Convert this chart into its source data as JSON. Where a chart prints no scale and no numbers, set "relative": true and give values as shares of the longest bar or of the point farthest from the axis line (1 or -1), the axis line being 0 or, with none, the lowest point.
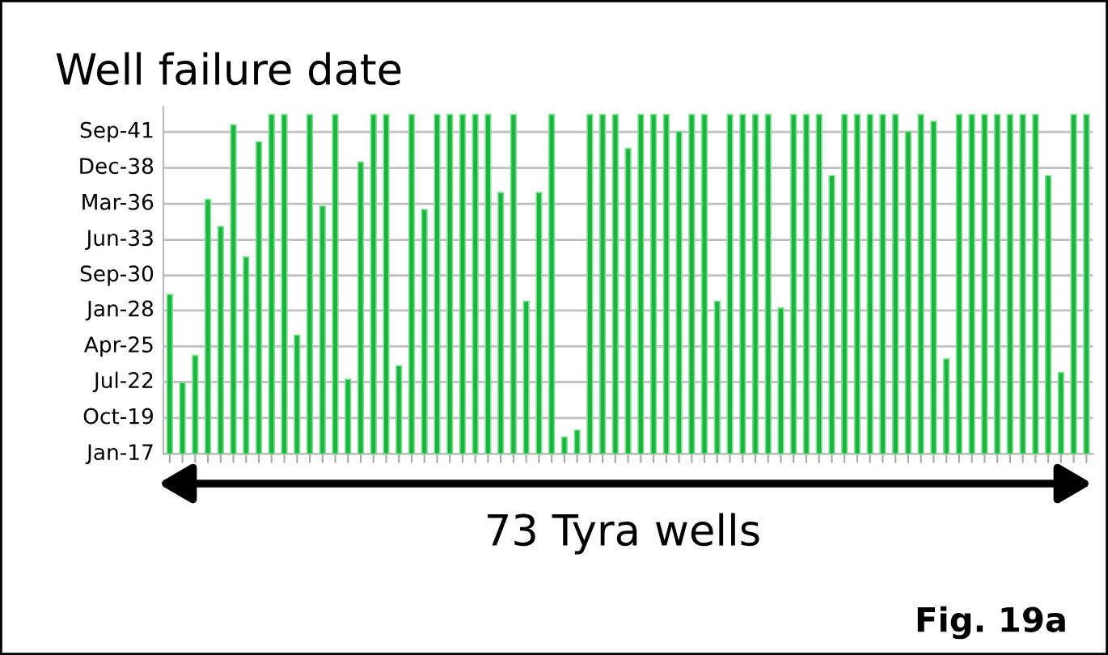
{
  "chart_data": {
    "type": "bar",
    "title": "Well failure date",
    "relative": true,
    "categories": [
      null,
      null,
      null,
      null,
      null,
      null,
      null,
      null,
      null,
      null,
      null,
      null,
      null,
      null,
      null,
      null,
      null,
      null,
      null,
      null,
      null,
      null,
      null,
      null,
      null,
      null,
      null,
      null,
      null,
      null,
      null,
      null,
      null,
      null,
      null,
      null,
      null,
      null,
      null,
      null,
      null,
      null,
      null,
      null,
      null,
      null,
      null,
      null,
      null,
      null,
      null,
      null,
      null,
      null,
      null,
      null,
      null,
      null,
      null,
      null,
      null,
      null,
      null,
      null,
      null,
      null,
      null,
      null,
      null,
      null,
      null,
      null,
      null
    ],
    "values": [
      0.47,
      0.21,
      0.29,
      0.75,
      0.67,
      0.97,
      0.58,
      0.92,
      1,
      1,
      0.35,
      1,
      0.73,
      1,
      0.22,
      0.86,
      1,
      1,
      0.26,
      1,
      0.72,
      1,
      1,
      1,
      1,
      1,
      0.77,
      1,
      0.45,
      0.77,
      1,
      0.05,
      0.07,
      1,
      1,
      1,
      0.9,
      1,
      1,
      1,
      0.95,
      1,
      1,
      0.45,
      1,
      1,
      1,
      1,
      0.43,
      1,
      1,
      1,
      0.82,
      1,
      1,
      1,
      1,
      1,
      0.95,
      1,
      0.98,
      0.28,
      1,
      1,
      1,
      1,
      1,
      1,
      1,
      0.82,
      0.24,
      1,
      1
    ],
    "color": "#1fb142",
    "ref_lines": [
      {
        "axis": "y",
        "value": 0,
        "label": "Jan-17",
        "color": "#c0c0c0"
      },
      {
        "axis": "y",
        "value": 0.106,
        "label": "Oct-19",
        "color": "#c0c0c0"
      },
      {
        "axis": "y",
        "value": 0.212,
        "label": "Jul-22",
        "color": "#c0c0c0"
      },
      {
        "axis": "y",
        "value": 0.317,
        "label": "Apr-25",
        "color": "#c0c0c0"
      },
      {
        "axis": "y",
        "value": 0.423,
        "label": "Jan-28",
        "color": "#c0c0c0"
      },
      {
        "axis": "y",
        "value": 0.526,
        "label": "Sep-30",
        "color": "#c0c0c0"
      },
      {
        "axis": "y",
        "value": 0.631,
        "label": "Jun-33",
        "color": "#c0c0c0"
      },
      {
        "axis": "y",
        "value": 0.737,
        "label": "Mar-36",
        "color": "#c0c0c0"
      },
      {
        "axis": "y",
        "value": 0.843,
        "label": "Dec-38",
        "color": "#c0c0c0"
      },
      {
        "axis": "y",
        "value": 0.949,
        "label": "Sep-41",
        "color": "#c0c0c0"
      }
    ],
    "annotations": [
      "73 Tyra wells",
      "Fig. 19a"
    ]
  }
}
